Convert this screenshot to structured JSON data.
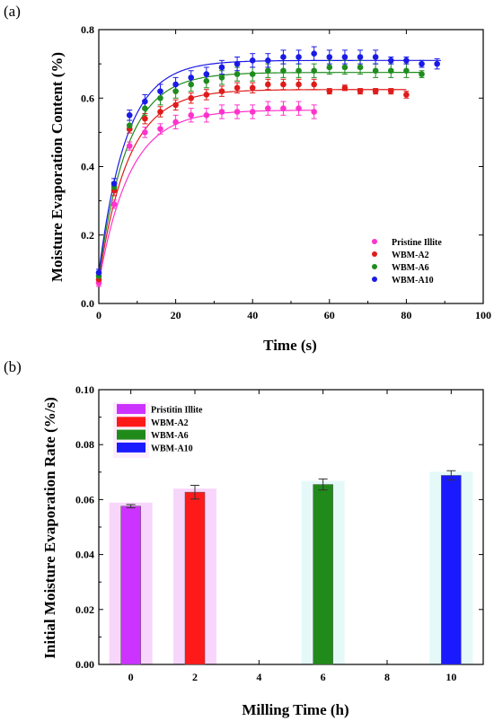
{
  "chart_data": [
    {
      "type": "scatter",
      "panel_label": "(a)",
      "xlabel": "Time (s)",
      "ylabel": "Moisture Evaporation Content (%)",
      "xlim": [
        0,
        100
      ],
      "ylim": [
        0,
        0.8
      ],
      "xticks": [
        0,
        20,
        40,
        60,
        80,
        100
      ],
      "yticks": [
        0.0,
        0.2,
        0.4,
        0.6,
        0.8
      ],
      "grid": false,
      "legend_position": "lower-right",
      "series": [
        {
          "name": "Pristine Illite",
          "color": "#ff33cc",
          "x": [
            0,
            4,
            8,
            12,
            16,
            20,
            24,
            28,
            32,
            36,
            40,
            44,
            48,
            52,
            56
          ],
          "y": [
            0.06,
            0.29,
            0.46,
            0.5,
            0.51,
            0.53,
            0.55,
            0.55,
            0.56,
            0.56,
            0.56,
            0.57,
            0.57,
            0.57,
            0.56
          ],
          "err": [
            0.01,
            0.012,
            0.012,
            0.015,
            0.015,
            0.02,
            0.02,
            0.02,
            0.02,
            0.02,
            0.02,
            0.02,
            0.02,
            0.02,
            0.02
          ],
          "fit": {
            "plateau": 0.565,
            "k": 0.125,
            "x_end": 56
          }
        },
        {
          "name": "WBM-A2",
          "color": "#e01b1b",
          "x": [
            0,
            4,
            8,
            12,
            16,
            20,
            24,
            28,
            32,
            36,
            40,
            44,
            48,
            52,
            56,
            60,
            64,
            68,
            72,
            76,
            80
          ],
          "y": [
            0.07,
            0.33,
            0.51,
            0.54,
            0.56,
            0.58,
            0.6,
            0.61,
            0.62,
            0.63,
            0.63,
            0.64,
            0.64,
            0.64,
            0.64,
            0.62,
            0.63,
            0.62,
            0.62,
            0.62,
            0.61
          ],
          "err": [
            0.01,
            0.015,
            0.012,
            0.015,
            0.015,
            0.015,
            0.015,
            0.015,
            0.015,
            0.015,
            0.015,
            0.015,
            0.015,
            0.015,
            0.015,
            0.008,
            0.008,
            0.008,
            0.008,
            0.008,
            0.01
          ],
          "fit": {
            "plateau": 0.625,
            "k": 0.13,
            "x_end": 80
          }
        },
        {
          "name": "WBM-A6",
          "color": "#1f8c1f",
          "x": [
            0,
            4,
            8,
            12,
            16,
            20,
            24,
            28,
            32,
            36,
            40,
            44,
            48,
            52,
            56,
            60,
            64,
            68,
            72,
            76,
            80,
            84
          ],
          "y": [
            0.08,
            0.34,
            0.52,
            0.57,
            0.6,
            0.62,
            0.64,
            0.65,
            0.66,
            0.67,
            0.67,
            0.68,
            0.68,
            0.68,
            0.68,
            0.69,
            0.69,
            0.69,
            0.68,
            0.68,
            0.68,
            0.67
          ],
          "err": [
            0.01,
            0.015,
            0.015,
            0.02,
            0.02,
            0.02,
            0.02,
            0.02,
            0.02,
            0.02,
            0.02,
            0.02,
            0.02,
            0.02,
            0.02,
            0.02,
            0.02,
            0.02,
            0.02,
            0.02,
            0.02,
            0.01
          ],
          "fit": {
            "plateau": 0.675,
            "k": 0.135,
            "x_end": 84
          }
        },
        {
          "name": "WBM-A10",
          "color": "#1a1ae6",
          "x": [
            0,
            4,
            8,
            12,
            16,
            20,
            24,
            28,
            32,
            36,
            40,
            44,
            48,
            52,
            56,
            60,
            64,
            68,
            72,
            76,
            80,
            84,
            88
          ],
          "y": [
            0.09,
            0.35,
            0.55,
            0.59,
            0.62,
            0.64,
            0.66,
            0.67,
            0.69,
            0.7,
            0.71,
            0.71,
            0.72,
            0.72,
            0.73,
            0.72,
            0.72,
            0.72,
            0.72,
            0.71,
            0.71,
            0.7,
            0.7
          ],
          "err": [
            0.01,
            0.015,
            0.015,
            0.02,
            0.02,
            0.02,
            0.02,
            0.02,
            0.02,
            0.02,
            0.02,
            0.02,
            0.02,
            0.02,
            0.02,
            0.02,
            0.02,
            0.02,
            0.02,
            0.01,
            0.01,
            0.01,
            0.015
          ],
          "fit": {
            "plateau": 0.71,
            "k": 0.14,
            "x_end": 89
          }
        }
      ]
    },
    {
      "type": "bar",
      "panel_label": "(b)",
      "xlabel": "Milling Time (h)",
      "ylabel": "Initial Moisture Evaporation Rate (%/s)",
      "xlim": [
        -1,
        11
      ],
      "ylim": [
        0,
        0.1
      ],
      "xticks": [
        0,
        2,
        4,
        6,
        8,
        10
      ],
      "yticks": [
        0.0,
        0.02,
        0.04,
        0.06,
        0.08,
        0.1
      ],
      "grid": false,
      "legend_position": "top-left",
      "series": [
        {
          "name": "Pristitin Illite",
          "x": 0,
          "value": 0.0576,
          "err": 0.0006,
          "color": "#cc33ff",
          "glow": "#f6c8fb"
        },
        {
          "name": "WBM-A2",
          "x": 2,
          "value": 0.0627,
          "err": 0.0025,
          "color": "#ff1a1a",
          "glow": "#f6c8fb"
        },
        {
          "name": "WBM-A6",
          "x": 6,
          "value": 0.0655,
          "err": 0.002,
          "color": "#208b1a",
          "glow": "#dcf7f7"
        },
        {
          "name": "WBM-A10",
          "x": 10,
          "value": 0.0688,
          "err": 0.0017,
          "color": "#1a1aff",
          "glow": "#dcf7f7"
        }
      ]
    }
  ]
}
